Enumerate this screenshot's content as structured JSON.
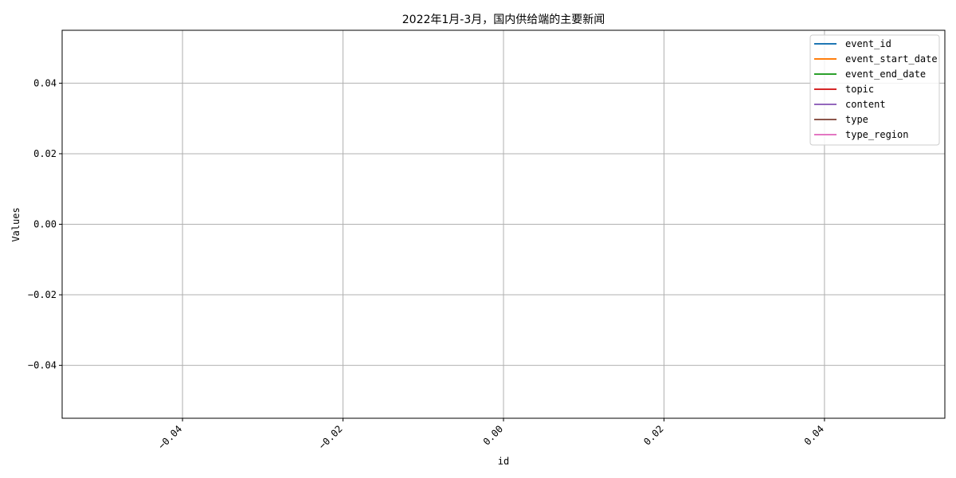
{
  "chart_data": {
    "type": "line",
    "title": "2022年1月-3月，国内供给端的主要新闻",
    "xlabel": "id",
    "ylabel": "Values",
    "xlim": [
      -0.055,
      0.055
    ],
    "ylim": [
      -0.055,
      0.055
    ],
    "xticks": [
      -0.04,
      -0.02,
      0.0,
      0.02,
      0.04
    ],
    "xtick_labels": [
      "−0.04",
      "−0.02",
      "0.00",
      "0.02",
      "0.04"
    ],
    "yticks": [
      0.04,
      0.02,
      0.0,
      -0.02,
      -0.04
    ],
    "ytick_labels": [
      "0.04",
      "0.02",
      "0.00",
      "−0.02",
      "−0.04"
    ],
    "grid": true,
    "legend_position": "upper right",
    "series": [
      {
        "name": "event_id",
        "color": "#1f77b4",
        "x": [],
        "values": []
      },
      {
        "name": "event_start_date",
        "color": "#ff7f0e",
        "x": [],
        "values": []
      },
      {
        "name": "event_end_date",
        "color": "#2ca02c",
        "x": [],
        "values": []
      },
      {
        "name": "topic",
        "color": "#d62728",
        "x": [],
        "values": []
      },
      {
        "name": "content",
        "color": "#9467bd",
        "x": [],
        "values": []
      },
      {
        "name": "type",
        "color": "#8c564b",
        "x": [],
        "values": []
      },
      {
        "name": "type_region",
        "color": "#e377c2",
        "x": [],
        "values": []
      }
    ]
  }
}
